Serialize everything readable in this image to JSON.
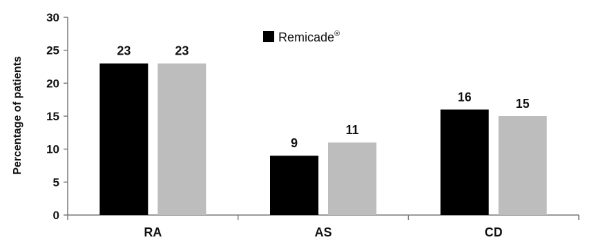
{
  "chart_data": {
    "type": "bar",
    "categories": [
      "RA",
      "AS",
      "CD"
    ],
    "series": [
      {
        "name": "Remicade®",
        "values": [
          23,
          9,
          16
        ],
        "color": "#000000"
      },
      {
        "values": [
          23,
          11,
          15
        ],
        "color": "#bdbdbd"
      }
    ],
    "data_labels": [
      [
        "23",
        "9",
        "16"
      ],
      [
        "23",
        "11",
        "15"
      ]
    ],
    "ylabel": "Percentage of patients",
    "xlabel": "",
    "ylim": [
      0,
      30
    ],
    "yticks": [
      0,
      5,
      10,
      15,
      20,
      25,
      30
    ],
    "legend": {
      "text": "Remicade",
      "superscript": "®",
      "placement": "top-center"
    },
    "grid": false
  }
}
